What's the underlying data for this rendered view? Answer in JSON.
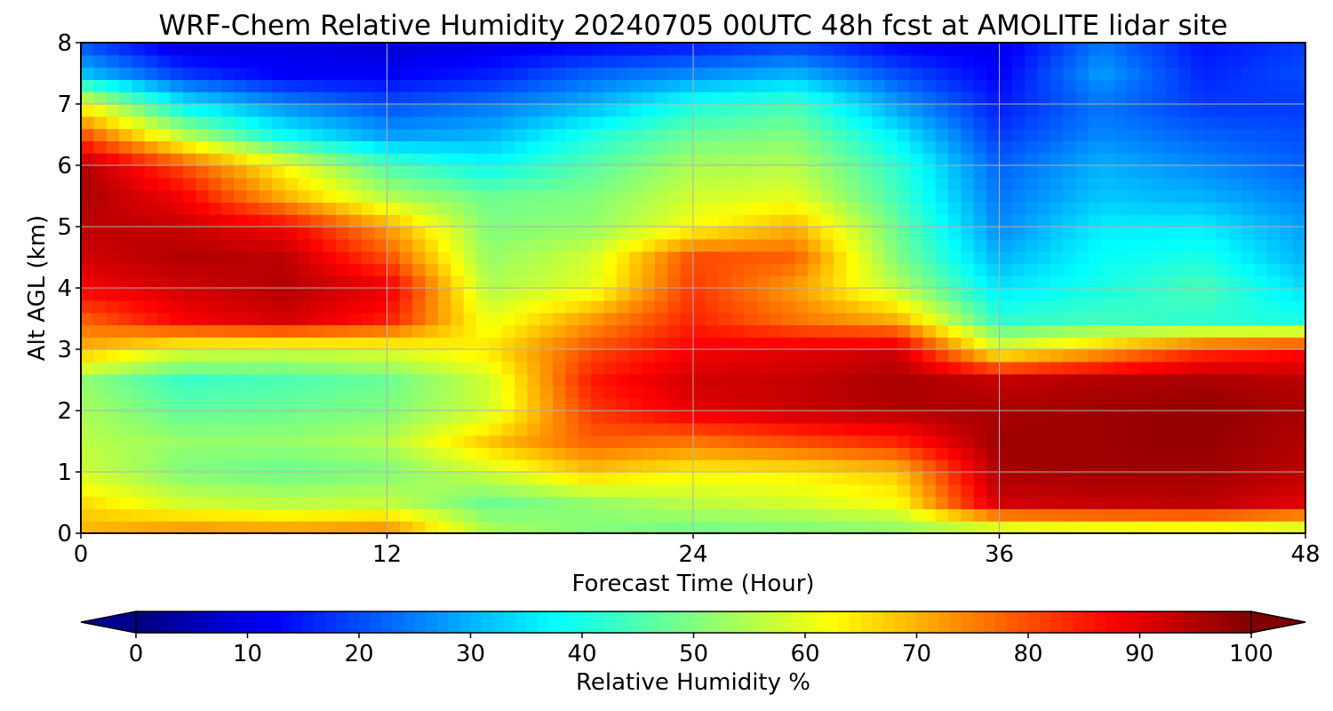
{
  "chart_data": {
    "type": "heatmap",
    "title": "WRF-Chem Relative Humidity 20240705 00UTC 48h fcst at AMOLITE lidar site",
    "xlabel": "Forecast Time (Hour)",
    "ylabel": "Alt AGL (km)",
    "xlim": [
      0,
      48
    ],
    "ylim": [
      0,
      8
    ],
    "x_ticks": [
      0,
      12,
      24,
      36,
      48
    ],
    "y_ticks": [
      0,
      1,
      2,
      3,
      4,
      5,
      6,
      7,
      8
    ],
    "grid": true,
    "colormap": "jet",
    "colorbar": {
      "label": "Relative Humidity %",
      "range": [
        0,
        100
      ],
      "ticks": [
        0,
        10,
        20,
        30,
        40,
        50,
        60,
        70,
        80,
        90,
        100
      ],
      "extend": "both",
      "orientation": "horizontal"
    },
    "x": [
      0,
      4,
      8,
      12,
      16,
      20,
      24,
      28,
      32,
      36,
      40,
      44,
      48
    ],
    "y": [
      0,
      0.5,
      1,
      1.5,
      2,
      2.5,
      3,
      3.5,
      4,
      4.5,
      5,
      5.5,
      6,
      6.5,
      7,
      7.5,
      8
    ],
    "z": [
      [
        70,
        75,
        74,
        76,
        55,
        50,
        48,
        49,
        50,
        52,
        54,
        55,
        52
      ],
      [
        66,
        58,
        56,
        57,
        48,
        52,
        56,
        58,
        62,
        92,
        93,
        94,
        90
      ],
      [
        58,
        50,
        48,
        50,
        58,
        68,
        63,
        64,
        68,
        96,
        97,
        97,
        94
      ],
      [
        56,
        52,
        52,
        55,
        68,
        78,
        76,
        80,
        84,
        97,
        97,
        98,
        95
      ],
      [
        54,
        47,
        48,
        50,
        58,
        82,
        90,
        93,
        95,
        96,
        97,
        98,
        96
      ],
      [
        52,
        43,
        45,
        48,
        58,
        85,
        92,
        93,
        96,
        93,
        95,
        96,
        94
      ],
      [
        70,
        60,
        58,
        60,
        65,
        80,
        88,
        90,
        92,
        60,
        70,
        82,
        86
      ],
      [
        78,
        88,
        92,
        85,
        60,
        72,
        84,
        76,
        70,
        42,
        44,
        42,
        40
      ],
      [
        88,
        92,
        95,
        90,
        55,
        60,
        82,
        72,
        56,
        35,
        40,
        45,
        34
      ],
      [
        92,
        95,
        94,
        80,
        52,
        58,
        80,
        78,
        50,
        30,
        38,
        40,
        30
      ],
      [
        94,
        93,
        88,
        72,
        50,
        52,
        62,
        70,
        48,
        26,
        36,
        36,
        28
      ],
      [
        96,
        88,
        70,
        55,
        48,
        50,
        58,
        60,
        44,
        24,
        32,
        30,
        25
      ],
      [
        96,
        80,
        62,
        45,
        38,
        46,
        54,
        55,
        42,
        22,
        30,
        26,
        22
      ],
      [
        80,
        56,
        38,
        28,
        30,
        40,
        48,
        50,
        36,
        18,
        26,
        22,
        20
      ],
      [
        62,
        36,
        26,
        20,
        24,
        30,
        40,
        44,
        28,
        15,
        24,
        18,
        18
      ],
      [
        32,
        18,
        12,
        12,
        15,
        22,
        26,
        30,
        20,
        12,
        28,
        16,
        20
      ],
      [
        20,
        8,
        10,
        8,
        10,
        12,
        14,
        18,
        12,
        10,
        24,
        14,
        18
      ]
    ]
  }
}
